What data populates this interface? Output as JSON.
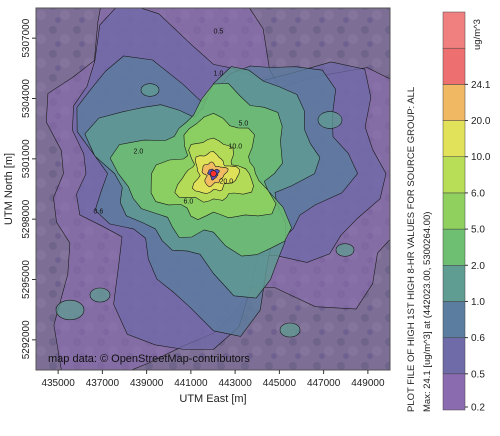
{
  "chart_data": {
    "type": "heatmap",
    "title": "PLOT FILE OF HIGH 1ST HIGH 8-HR VALUES FOR SOURCE GROUP: ALL",
    "max_note": "Max:  24.1  [ug/m^3]  at  (442023.00, 5300264.00)",
    "xlabel": "UTM East [m]",
    "ylabel": "UTM North [m]",
    "attribution": "map data: © OpenStreetMap-contributors",
    "xlim": [
      434000,
      450000
    ],
    "ylim": [
      5290500,
      5308500
    ],
    "x_ticks": [
      435000,
      437000,
      439000,
      441000,
      443000,
      445000,
      447000,
      449000
    ],
    "y_ticks": [
      5292000,
      5295000,
      5298000,
      5301000,
      5304000,
      5307000
    ],
    "max_location": {
      "x": 442023.0,
      "y": 5300264.0,
      "value": 24.1
    },
    "colorbar": {
      "unit": "ug/m^3",
      "levels": [
        0.2,
        0.5,
        0.6,
        1.0,
        2.0,
        5.0,
        6.0,
        10.0,
        20.0,
        24.1
      ],
      "tick_labels": [
        "0.2",
        "0.5",
        "0.6",
        "1.0",
        "2.0",
        "5.0",
        "6.0",
        "10.0",
        "20.0",
        "24.1"
      ],
      "colors": [
        "#8b6bb0",
        "#6f6aa8",
        "#5b7d9f",
        "#5f9c92",
        "#6fbf72",
        "#8fd05f",
        "#b8dd57",
        "#e2e25a",
        "#f0b862",
        "#ee6f6f",
        "#f08080"
      ]
    },
    "contour_labels": [
      "0.5",
      "0.6",
      "1.0",
      "2.0",
      "5.0",
      "6.0",
      "10.0",
      "20.0"
    ]
  }
}
